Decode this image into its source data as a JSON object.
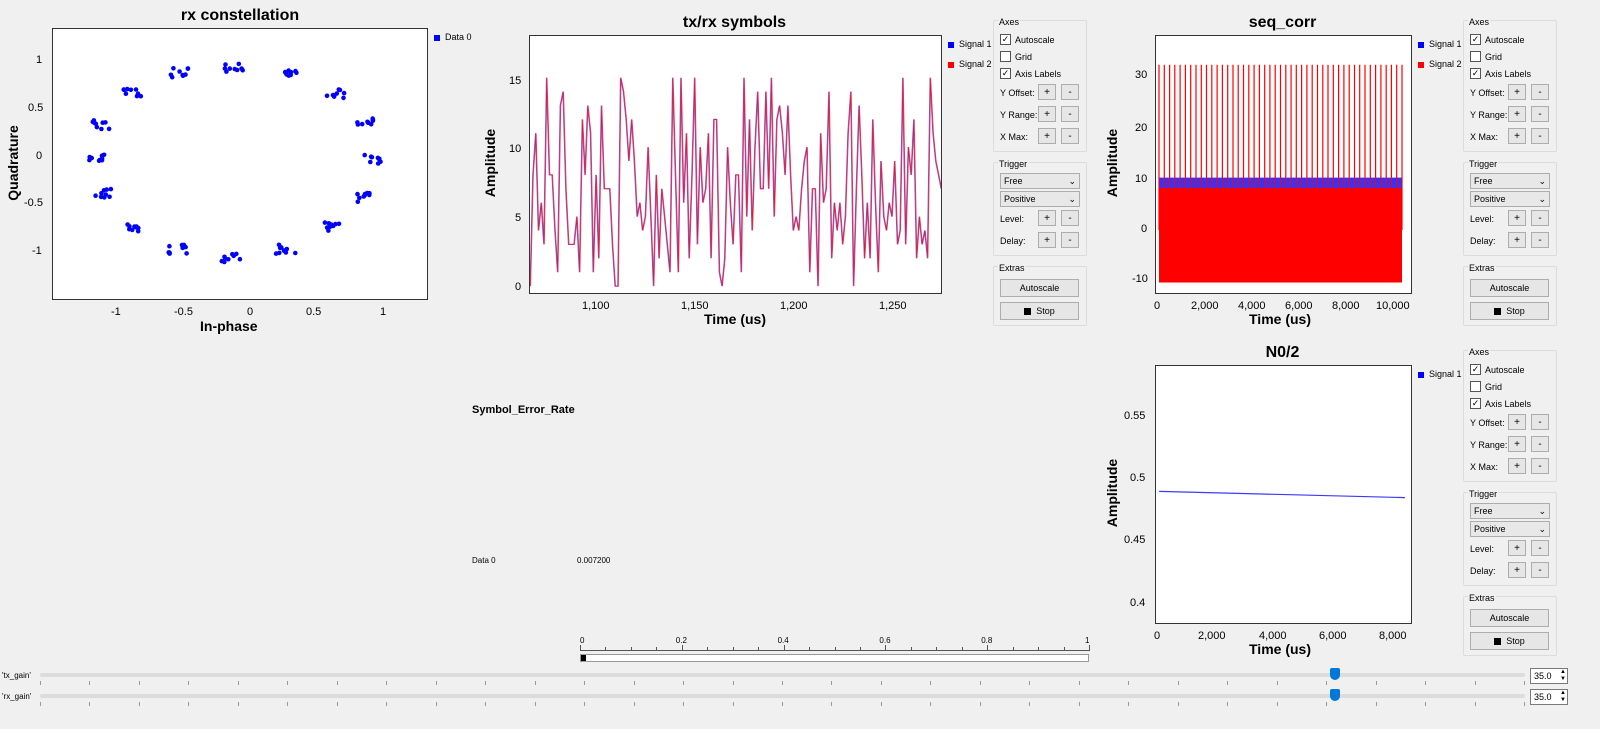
{
  "constellation": {
    "title": "rx constellation",
    "xlabel": "In-phase",
    "ylabel": "Quadrature",
    "xticks": [
      "-1",
      "-0.5",
      "0",
      "0.5",
      "1"
    ],
    "yticks": [
      "1",
      "0.5",
      "0",
      "-0.5",
      "-1"
    ],
    "legend": "Data 0",
    "color": "#0000ff"
  },
  "txrx": {
    "title": "tx/rx symbols",
    "xlabel": "Time (us)",
    "ylabel": "Amplitude",
    "xticks": [
      "1,100",
      "1,150",
      "1,200",
      "1,250"
    ],
    "yticks": [
      "15",
      "10",
      "5",
      "0"
    ],
    "legend": [
      "Signal 1",
      "Signal 2"
    ],
    "colors": [
      "#0000ff",
      "#ff0000"
    ]
  },
  "seqcorr": {
    "title": "seq_corr",
    "xlabel": "Time (us)",
    "ylabel": "Amplitude",
    "xticks": [
      "0",
      "2,000",
      "4,000",
      "6,000",
      "8,000",
      "10,000"
    ],
    "yticks": [
      "30",
      "20",
      "10",
      "0",
      "-10"
    ],
    "legend": [
      "Signal 1",
      "Signal 2"
    ]
  },
  "n02": {
    "title": "N0/2",
    "xlabel": "Time (us)",
    "ylabel": "Amplitude",
    "xticks": [
      "0",
      "2,000",
      "4,000",
      "6,000",
      "8,000"
    ],
    "yticks": [
      "0.55",
      "0.5",
      "0.45",
      "0.4"
    ],
    "legend": [
      "Signal 1"
    ]
  },
  "controls": {
    "axes": "Axes",
    "autoscale": "Autoscale",
    "grid": "Grid",
    "axis_labels": "Axis Labels",
    "y_offset": "Y Offset:",
    "y_range": "Y Range:",
    "x_max": "X Max:",
    "plus": "+",
    "minus": "-",
    "trigger": "Trigger",
    "mode": "Free",
    "slope": "Positive",
    "level": "Level:",
    "delay": "Delay:",
    "extras": "Extras",
    "autoscale_btn": "Autoscale",
    "stop_btn": "Stop",
    "check": "✓"
  },
  "ser": {
    "title": "Symbol_Error_Rate",
    "label": "Data 0",
    "value": "0.007200",
    "bar_ticks": [
      "0",
      "0.2",
      "0.4",
      "0.6",
      "0.8",
      "1"
    ],
    "bar_fraction": 0.0072
  },
  "sliders": {
    "tx_label": "'tx_gain'",
    "tx_value": "35.0",
    "rx_label": "'rx_gain'",
    "rx_value": "35.0",
    "accent": "#0078d7"
  },
  "chart_data": [
    {
      "type": "scatter",
      "title": "rx constellation",
      "xlabel": "In-phase",
      "ylabel": "Quadrature",
      "xlim": [
        -1.4,
        1.3
      ],
      "ylim": [
        -1.45,
        1.35
      ],
      "series": [
        {
          "name": "Data 0",
          "clusters": [
            [
              0.92,
              0.0
            ],
            [
              0.85,
              0.38
            ],
            [
              0.64,
              0.68
            ],
            [
              0.3,
              0.9
            ],
            [
              -0.1,
              0.95
            ],
            [
              -0.48,
              0.9
            ],
            [
              -0.82,
              0.68
            ],
            [
              -1.05,
              0.36
            ],
            [
              -1.1,
              0.0
            ],
            [
              -1.05,
              -0.36
            ],
            [
              -0.82,
              -0.7
            ],
            [
              -0.5,
              -0.93
            ],
            [
              -0.12,
              -1.03
            ],
            [
              0.28,
              -0.93
            ],
            [
              0.6,
              -0.7
            ],
            [
              0.82,
              -0.4
            ]
          ]
        }
      ]
    },
    {
      "type": "line",
      "title": "tx/rx symbols",
      "xlabel": "Time (us)",
      "ylabel": "Amplitude",
      "xlim": [
        1065,
        1272
      ],
      "ylim": [
        -0.5,
        18
      ],
      "series": [
        {
          "name": "Signal 1"
        },
        {
          "name": "Signal 2"
        }
      ]
    },
    {
      "type": "line",
      "title": "seq_corr",
      "xlabel": "Time (us)",
      "ylabel": "Amplitude",
      "xlim": [
        -200,
        10300
      ],
      "ylim": [
        -12,
        37
      ],
      "series": [
        {
          "name": "Signal 1",
          "range": [
            -9,
            10
          ]
        },
        {
          "name": "Signal 2",
          "range": [
            -10,
            8
          ],
          "peak": 31.5
        }
      ]
    },
    {
      "type": "line",
      "title": "N0/2",
      "xlabel": "Time (us)",
      "ylabel": "Amplitude",
      "xlim": [
        -100,
        8200
      ],
      "ylim": [
        0.385,
        0.59
      ],
      "series": [
        {
          "name": "Signal 1",
          "x": [
            0,
            8000
          ],
          "y": [
            0.49,
            0.485
          ]
        }
      ]
    }
  ]
}
